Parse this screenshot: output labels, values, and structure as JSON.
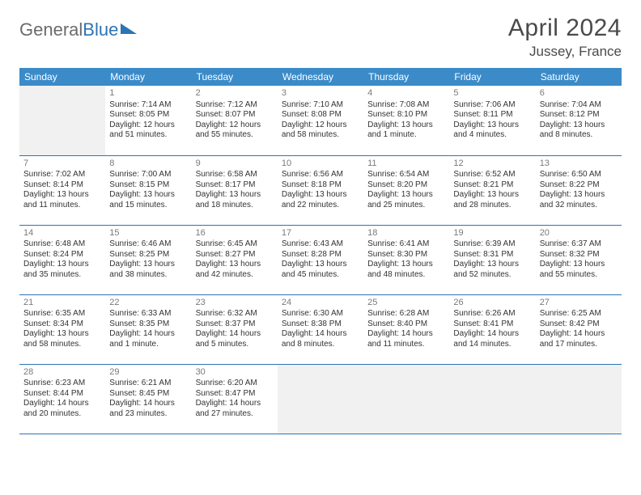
{
  "logo": {
    "part1": "General",
    "part2": "Blue"
  },
  "title": "April 2024",
  "location": "Jussey, France",
  "header_color": "#3b8bc9",
  "border_color": "#2d74b5",
  "blank_bg": "#f1f1f1",
  "day_headers": [
    "Sunday",
    "Monday",
    "Tuesday",
    "Wednesday",
    "Thursday",
    "Friday",
    "Saturday"
  ],
  "weeks": [
    [
      null,
      {
        "n": "1",
        "sr": "Sunrise: 7:14 AM",
        "ss": "Sunset: 8:05 PM",
        "d1": "Daylight: 12 hours",
        "d2": "and 51 minutes."
      },
      {
        "n": "2",
        "sr": "Sunrise: 7:12 AM",
        "ss": "Sunset: 8:07 PM",
        "d1": "Daylight: 12 hours",
        "d2": "and 55 minutes."
      },
      {
        "n": "3",
        "sr": "Sunrise: 7:10 AM",
        "ss": "Sunset: 8:08 PM",
        "d1": "Daylight: 12 hours",
        "d2": "and 58 minutes."
      },
      {
        "n": "4",
        "sr": "Sunrise: 7:08 AM",
        "ss": "Sunset: 8:10 PM",
        "d1": "Daylight: 13 hours",
        "d2": "and 1 minute."
      },
      {
        "n": "5",
        "sr": "Sunrise: 7:06 AM",
        "ss": "Sunset: 8:11 PM",
        "d1": "Daylight: 13 hours",
        "d2": "and 4 minutes."
      },
      {
        "n": "6",
        "sr": "Sunrise: 7:04 AM",
        "ss": "Sunset: 8:12 PM",
        "d1": "Daylight: 13 hours",
        "d2": "and 8 minutes."
      }
    ],
    [
      {
        "n": "7",
        "sr": "Sunrise: 7:02 AM",
        "ss": "Sunset: 8:14 PM",
        "d1": "Daylight: 13 hours",
        "d2": "and 11 minutes."
      },
      {
        "n": "8",
        "sr": "Sunrise: 7:00 AM",
        "ss": "Sunset: 8:15 PM",
        "d1": "Daylight: 13 hours",
        "d2": "and 15 minutes."
      },
      {
        "n": "9",
        "sr": "Sunrise: 6:58 AM",
        "ss": "Sunset: 8:17 PM",
        "d1": "Daylight: 13 hours",
        "d2": "and 18 minutes."
      },
      {
        "n": "10",
        "sr": "Sunrise: 6:56 AM",
        "ss": "Sunset: 8:18 PM",
        "d1": "Daylight: 13 hours",
        "d2": "and 22 minutes."
      },
      {
        "n": "11",
        "sr": "Sunrise: 6:54 AM",
        "ss": "Sunset: 8:20 PM",
        "d1": "Daylight: 13 hours",
        "d2": "and 25 minutes."
      },
      {
        "n": "12",
        "sr": "Sunrise: 6:52 AM",
        "ss": "Sunset: 8:21 PM",
        "d1": "Daylight: 13 hours",
        "d2": "and 28 minutes."
      },
      {
        "n": "13",
        "sr": "Sunrise: 6:50 AM",
        "ss": "Sunset: 8:22 PM",
        "d1": "Daylight: 13 hours",
        "d2": "and 32 minutes."
      }
    ],
    [
      {
        "n": "14",
        "sr": "Sunrise: 6:48 AM",
        "ss": "Sunset: 8:24 PM",
        "d1": "Daylight: 13 hours",
        "d2": "and 35 minutes."
      },
      {
        "n": "15",
        "sr": "Sunrise: 6:46 AM",
        "ss": "Sunset: 8:25 PM",
        "d1": "Daylight: 13 hours",
        "d2": "and 38 minutes."
      },
      {
        "n": "16",
        "sr": "Sunrise: 6:45 AM",
        "ss": "Sunset: 8:27 PM",
        "d1": "Daylight: 13 hours",
        "d2": "and 42 minutes."
      },
      {
        "n": "17",
        "sr": "Sunrise: 6:43 AM",
        "ss": "Sunset: 8:28 PM",
        "d1": "Daylight: 13 hours",
        "d2": "and 45 minutes."
      },
      {
        "n": "18",
        "sr": "Sunrise: 6:41 AM",
        "ss": "Sunset: 8:30 PM",
        "d1": "Daylight: 13 hours",
        "d2": "and 48 minutes."
      },
      {
        "n": "19",
        "sr": "Sunrise: 6:39 AM",
        "ss": "Sunset: 8:31 PM",
        "d1": "Daylight: 13 hours",
        "d2": "and 52 minutes."
      },
      {
        "n": "20",
        "sr": "Sunrise: 6:37 AM",
        "ss": "Sunset: 8:32 PM",
        "d1": "Daylight: 13 hours",
        "d2": "and 55 minutes."
      }
    ],
    [
      {
        "n": "21",
        "sr": "Sunrise: 6:35 AM",
        "ss": "Sunset: 8:34 PM",
        "d1": "Daylight: 13 hours",
        "d2": "and 58 minutes."
      },
      {
        "n": "22",
        "sr": "Sunrise: 6:33 AM",
        "ss": "Sunset: 8:35 PM",
        "d1": "Daylight: 14 hours",
        "d2": "and 1 minute."
      },
      {
        "n": "23",
        "sr": "Sunrise: 6:32 AM",
        "ss": "Sunset: 8:37 PM",
        "d1": "Daylight: 14 hours",
        "d2": "and 5 minutes."
      },
      {
        "n": "24",
        "sr": "Sunrise: 6:30 AM",
        "ss": "Sunset: 8:38 PM",
        "d1": "Daylight: 14 hours",
        "d2": "and 8 minutes."
      },
      {
        "n": "25",
        "sr": "Sunrise: 6:28 AM",
        "ss": "Sunset: 8:40 PM",
        "d1": "Daylight: 14 hours",
        "d2": "and 11 minutes."
      },
      {
        "n": "26",
        "sr": "Sunrise: 6:26 AM",
        "ss": "Sunset: 8:41 PM",
        "d1": "Daylight: 14 hours",
        "d2": "and 14 minutes."
      },
      {
        "n": "27",
        "sr": "Sunrise: 6:25 AM",
        "ss": "Sunset: 8:42 PM",
        "d1": "Daylight: 14 hours",
        "d2": "and 17 minutes."
      }
    ],
    [
      {
        "n": "28",
        "sr": "Sunrise: 6:23 AM",
        "ss": "Sunset: 8:44 PM",
        "d1": "Daylight: 14 hours",
        "d2": "and 20 minutes."
      },
      {
        "n": "29",
        "sr": "Sunrise: 6:21 AM",
        "ss": "Sunset: 8:45 PM",
        "d1": "Daylight: 14 hours",
        "d2": "and 23 minutes."
      },
      {
        "n": "30",
        "sr": "Sunrise: 6:20 AM",
        "ss": "Sunset: 8:47 PM",
        "d1": "Daylight: 14 hours",
        "d2": "and 27 minutes."
      },
      null,
      null,
      null,
      null
    ]
  ]
}
